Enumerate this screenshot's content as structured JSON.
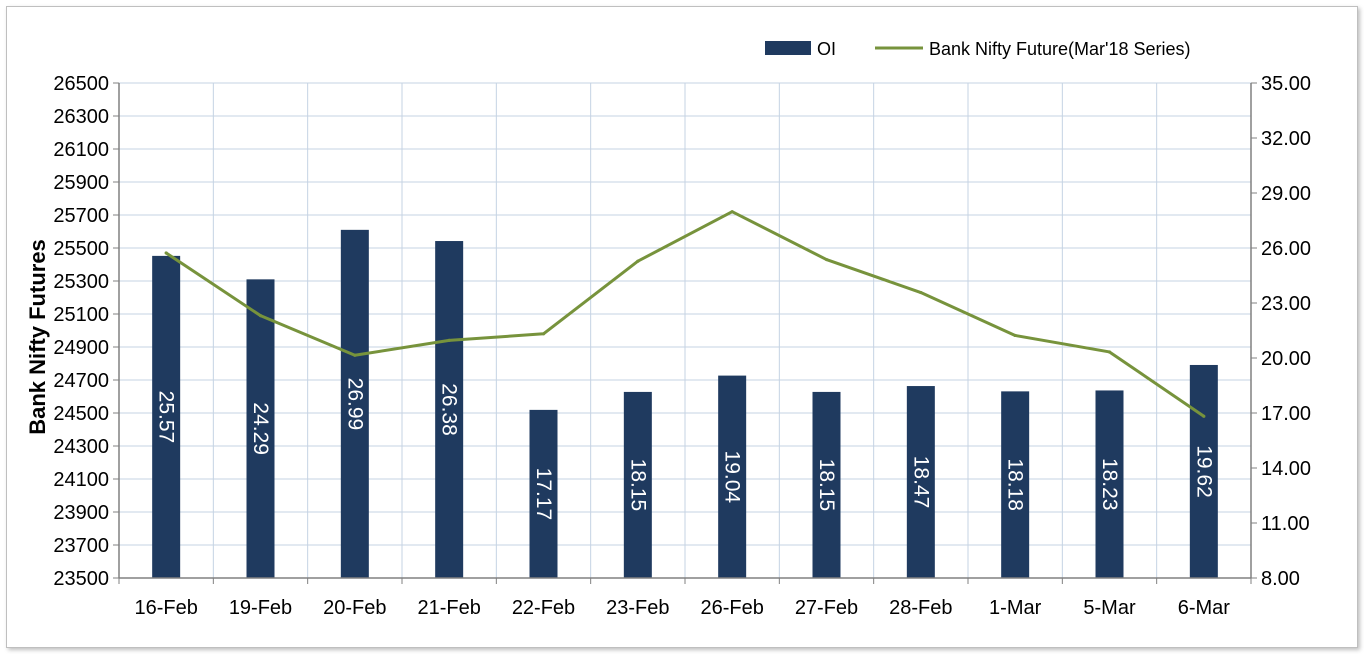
{
  "chart_data": {
    "type": "bar",
    "categories": [
      "16-Feb",
      "19-Feb",
      "20-Feb",
      "21-Feb",
      "22-Feb",
      "23-Feb",
      "26-Feb",
      "27-Feb",
      "28-Feb",
      "1-Mar",
      "5-Mar",
      "6-Mar"
    ],
    "series": [
      {
        "name": "OI",
        "type": "bar",
        "axis": "right",
        "color": "#1f3a5f",
        "values": [
          25.57,
          24.29,
          26.99,
          26.38,
          17.17,
          18.15,
          19.04,
          18.15,
          18.47,
          18.18,
          18.23,
          19.62
        ],
        "labels": [
          "25.57",
          "24.29",
          "26.99",
          "26.38",
          "17.17",
          "18.15",
          "19.04",
          "18.15",
          "18.47",
          "18.18",
          "18.23",
          "19.62"
        ]
      },
      {
        "name": "Bank Nifty Future(Mar'18 Series)",
        "type": "line",
        "axis": "left",
        "color": "#77933c",
        "values": [
          25470,
          25090,
          24850,
          24940,
          24980,
          25420,
          25720,
          25430,
          25230,
          24970,
          24870,
          24480
        ]
      }
    ],
    "ylabel": "Bank Nifty Futures",
    "ylim": [
      23500,
      26500
    ],
    "yticks": [
      "26500",
      "26300",
      "26100",
      "25900",
      "25700",
      "25500",
      "25300",
      "25100",
      "24900",
      "24700",
      "24500",
      "24300",
      "24100",
      "23900",
      "23700",
      "23500"
    ],
    "y2lim": [
      8,
      35
    ],
    "y2ticks": [
      "35.00",
      "32.00",
      "29.00",
      "26.00",
      "23.00",
      "20.00",
      "17.00",
      "14.00",
      "11.00",
      "8.00"
    ],
    "grid": true,
    "legend_position": "top-right"
  }
}
